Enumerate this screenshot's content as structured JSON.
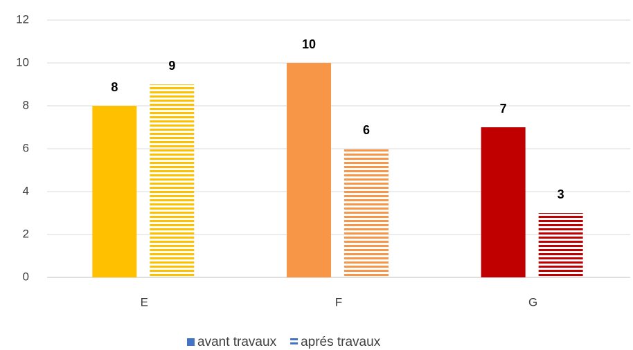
{
  "chart_data": {
    "type": "bar",
    "categories": [
      "E",
      "F",
      "G"
    ],
    "category_colors": [
      "#ffc000",
      "#f79646",
      "#c00000"
    ],
    "series": [
      {
        "name": "avant travaux",
        "color": "#4472c4",
        "pattern": "solid",
        "values": [
          8,
          10,
          7
        ]
      },
      {
        "name": "aprés travaux",
        "color": "#4472c4",
        "pattern": "stripes",
        "values": [
          9,
          6,
          3
        ]
      }
    ],
    "ylim": [
      0,
      12
    ],
    "yticks": [
      0,
      2,
      4,
      6,
      8,
      10,
      12
    ],
    "grid": true,
    "legend": "bottom"
  }
}
